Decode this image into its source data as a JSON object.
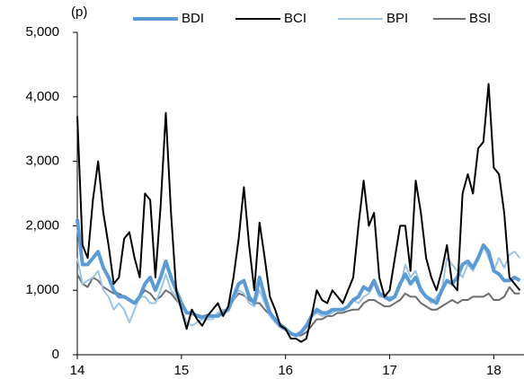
{
  "chart_data": {
    "type": "line",
    "y_unit_label": "(p)",
    "x": [
      14.0,
      14.05,
      14.1,
      14.15,
      14.2,
      14.25,
      14.3,
      14.35,
      14.4,
      14.45,
      14.5,
      14.55,
      14.6,
      14.65,
      14.7,
      14.75,
      14.8,
      14.85,
      14.9,
      14.95,
      15.0,
      15.05,
      15.1,
      15.15,
      15.2,
      15.25,
      15.3,
      15.35,
      15.4,
      15.45,
      15.5,
      15.55,
      15.6,
      15.65,
      15.7,
      15.75,
      15.8,
      15.85,
      15.9,
      15.95,
      16.0,
      16.05,
      16.1,
      16.15,
      16.2,
      16.25,
      16.3,
      16.35,
      16.4,
      16.45,
      16.5,
      16.55,
      16.6,
      16.65,
      16.7,
      16.75,
      16.8,
      16.85,
      16.9,
      16.95,
      17.0,
      17.05,
      17.1,
      17.15,
      17.2,
      17.25,
      17.3,
      17.35,
      17.4,
      17.45,
      17.5,
      17.55,
      17.6,
      17.65,
      17.7,
      17.75,
      17.8,
      17.85,
      17.9,
      17.95,
      18.0,
      18.05,
      18.1,
      18.15,
      18.2,
      18.25
    ],
    "series": [
      {
        "name": "BDI",
        "color": "#5b9bd5",
        "width": 4,
        "values": [
          2100,
          1400,
          1400,
          1500,
          1600,
          1350,
          1200,
          1000,
          900,
          900,
          850,
          800,
          900,
          1100,
          1200,
          1000,
          1200,
          1450,
          1200,
          1000,
          800,
          650,
          650,
          600,
          580,
          600,
          600,
          600,
          650,
          700,
          900,
          1100,
          1150,
          900,
          800,
          1200,
          900,
          650,
          550,
          450,
          400,
          330,
          300,
          350,
          450,
          600,
          700,
          650,
          650,
          700,
          700,
          700,
          750,
          850,
          900,
          1050,
          1000,
          1150,
          950,
          900,
          850,
          900,
          1100,
          1250,
          1100,
          1200,
          1000,
          900,
          850,
          800,
          1000,
          1150,
          1100,
          1200,
          1400,
          1450,
          1350,
          1500,
          1700,
          1600,
          1300,
          1250,
          1150,
          1150,
          1200,
          1150
        ]
      },
      {
        "name": "BCI",
        "color": "#000000",
        "width": 2,
        "values": [
          3700,
          1700,
          1500,
          2400,
          3000,
          2200,
          1700,
          1100,
          1200,
          1800,
          1900,
          1500,
          1200,
          2500,
          2400,
          1200,
          2300,
          3750,
          2200,
          1000,
          700,
          400,
          700,
          550,
          450,
          600,
          700,
          800,
          600,
          750,
          1200,
          1800,
          2600,
          1700,
          1000,
          2050,
          1500,
          900,
          700,
          450,
          400,
          250,
          250,
          200,
          250,
          600,
          1000,
          850,
          800,
          1000,
          900,
          800,
          1000,
          1200,
          2000,
          2700,
          2000,
          2200,
          1200,
          900,
          1000,
          1500,
          2000,
          2000,
          1300,
          2700,
          2200,
          1500,
          1200,
          1000,
          1300,
          1700,
          1100,
          1000,
          2500,
          2800,
          2500,
          3200,
          3300,
          4200,
          2900,
          2800,
          2200,
          1200,
          1100,
          1000
        ]
      },
      {
        "name": "BPI",
        "color": "#9dc3e6",
        "width": 2,
        "values": [
          1500,
          1100,
          1150,
          1200,
          1300,
          1000,
          900,
          700,
          800,
          700,
          500,
          700,
          900,
          900,
          800,
          800,
          1000,
          1250,
          1000,
          900,
          700,
          500,
          450,
          500,
          550,
          550,
          550,
          650,
          700,
          700,
          850,
          1000,
          950,
          800,
          750,
          1000,
          800,
          600,
          500,
          420,
          380,
          320,
          300,
          330,
          420,
          600,
          650,
          600,
          620,
          650,
          700,
          700,
          750,
          850,
          800,
          900,
          950,
          1100,
          900,
          900,
          900,
          900,
          1050,
          1400,
          1200,
          1300,
          1050,
          900,
          800,
          900,
          1000,
          1500,
          1400,
          1300,
          1200,
          1400,
          1300,
          1500,
          1700,
          1500,
          1300,
          1500,
          1350,
          1550,
          1600,
          1500
        ]
      },
      {
        "name": "BSI",
        "color": "#6d6d6d",
        "width": 2,
        "values": [
          1250,
          1100,
          1050,
          1200,
          1150,
          1050,
          1000,
          950,
          950,
          900,
          850,
          800,
          900,
          1000,
          950,
          850,
          900,
          1000,
          950,
          850,
          750,
          650,
          650,
          620,
          600,
          620,
          600,
          620,
          650,
          700,
          850,
          950,
          920,
          850,
          800,
          800,
          700,
          620,
          550,
          480,
          420,
          320,
          300,
          300,
          350,
          450,
          550,
          550,
          600,
          600,
          650,
          650,
          680,
          700,
          700,
          800,
          850,
          850,
          800,
          750,
          750,
          800,
          850,
          950,
          900,
          900,
          800,
          750,
          700,
          700,
          750,
          800,
          850,
          800,
          850,
          850,
          900,
          900,
          900,
          950,
          850,
          850,
          900,
          1050,
          950,
          950
        ]
      }
    ],
    "xlim": [
      14,
      18.29
    ],
    "xticks": [
      14,
      15,
      16,
      17,
      18
    ],
    "ylim": [
      0,
      5000
    ],
    "yticks": [
      0,
      {
        "value": 1000,
        "label": "1,000"
      },
      {
        "value": 2000,
        "label": "2,000"
      },
      {
        "value": 3000,
        "label": "3,000"
      },
      {
        "value": 4000,
        "label": "4,000"
      },
      {
        "value": 5000,
        "label": "5,000"
      }
    ]
  }
}
